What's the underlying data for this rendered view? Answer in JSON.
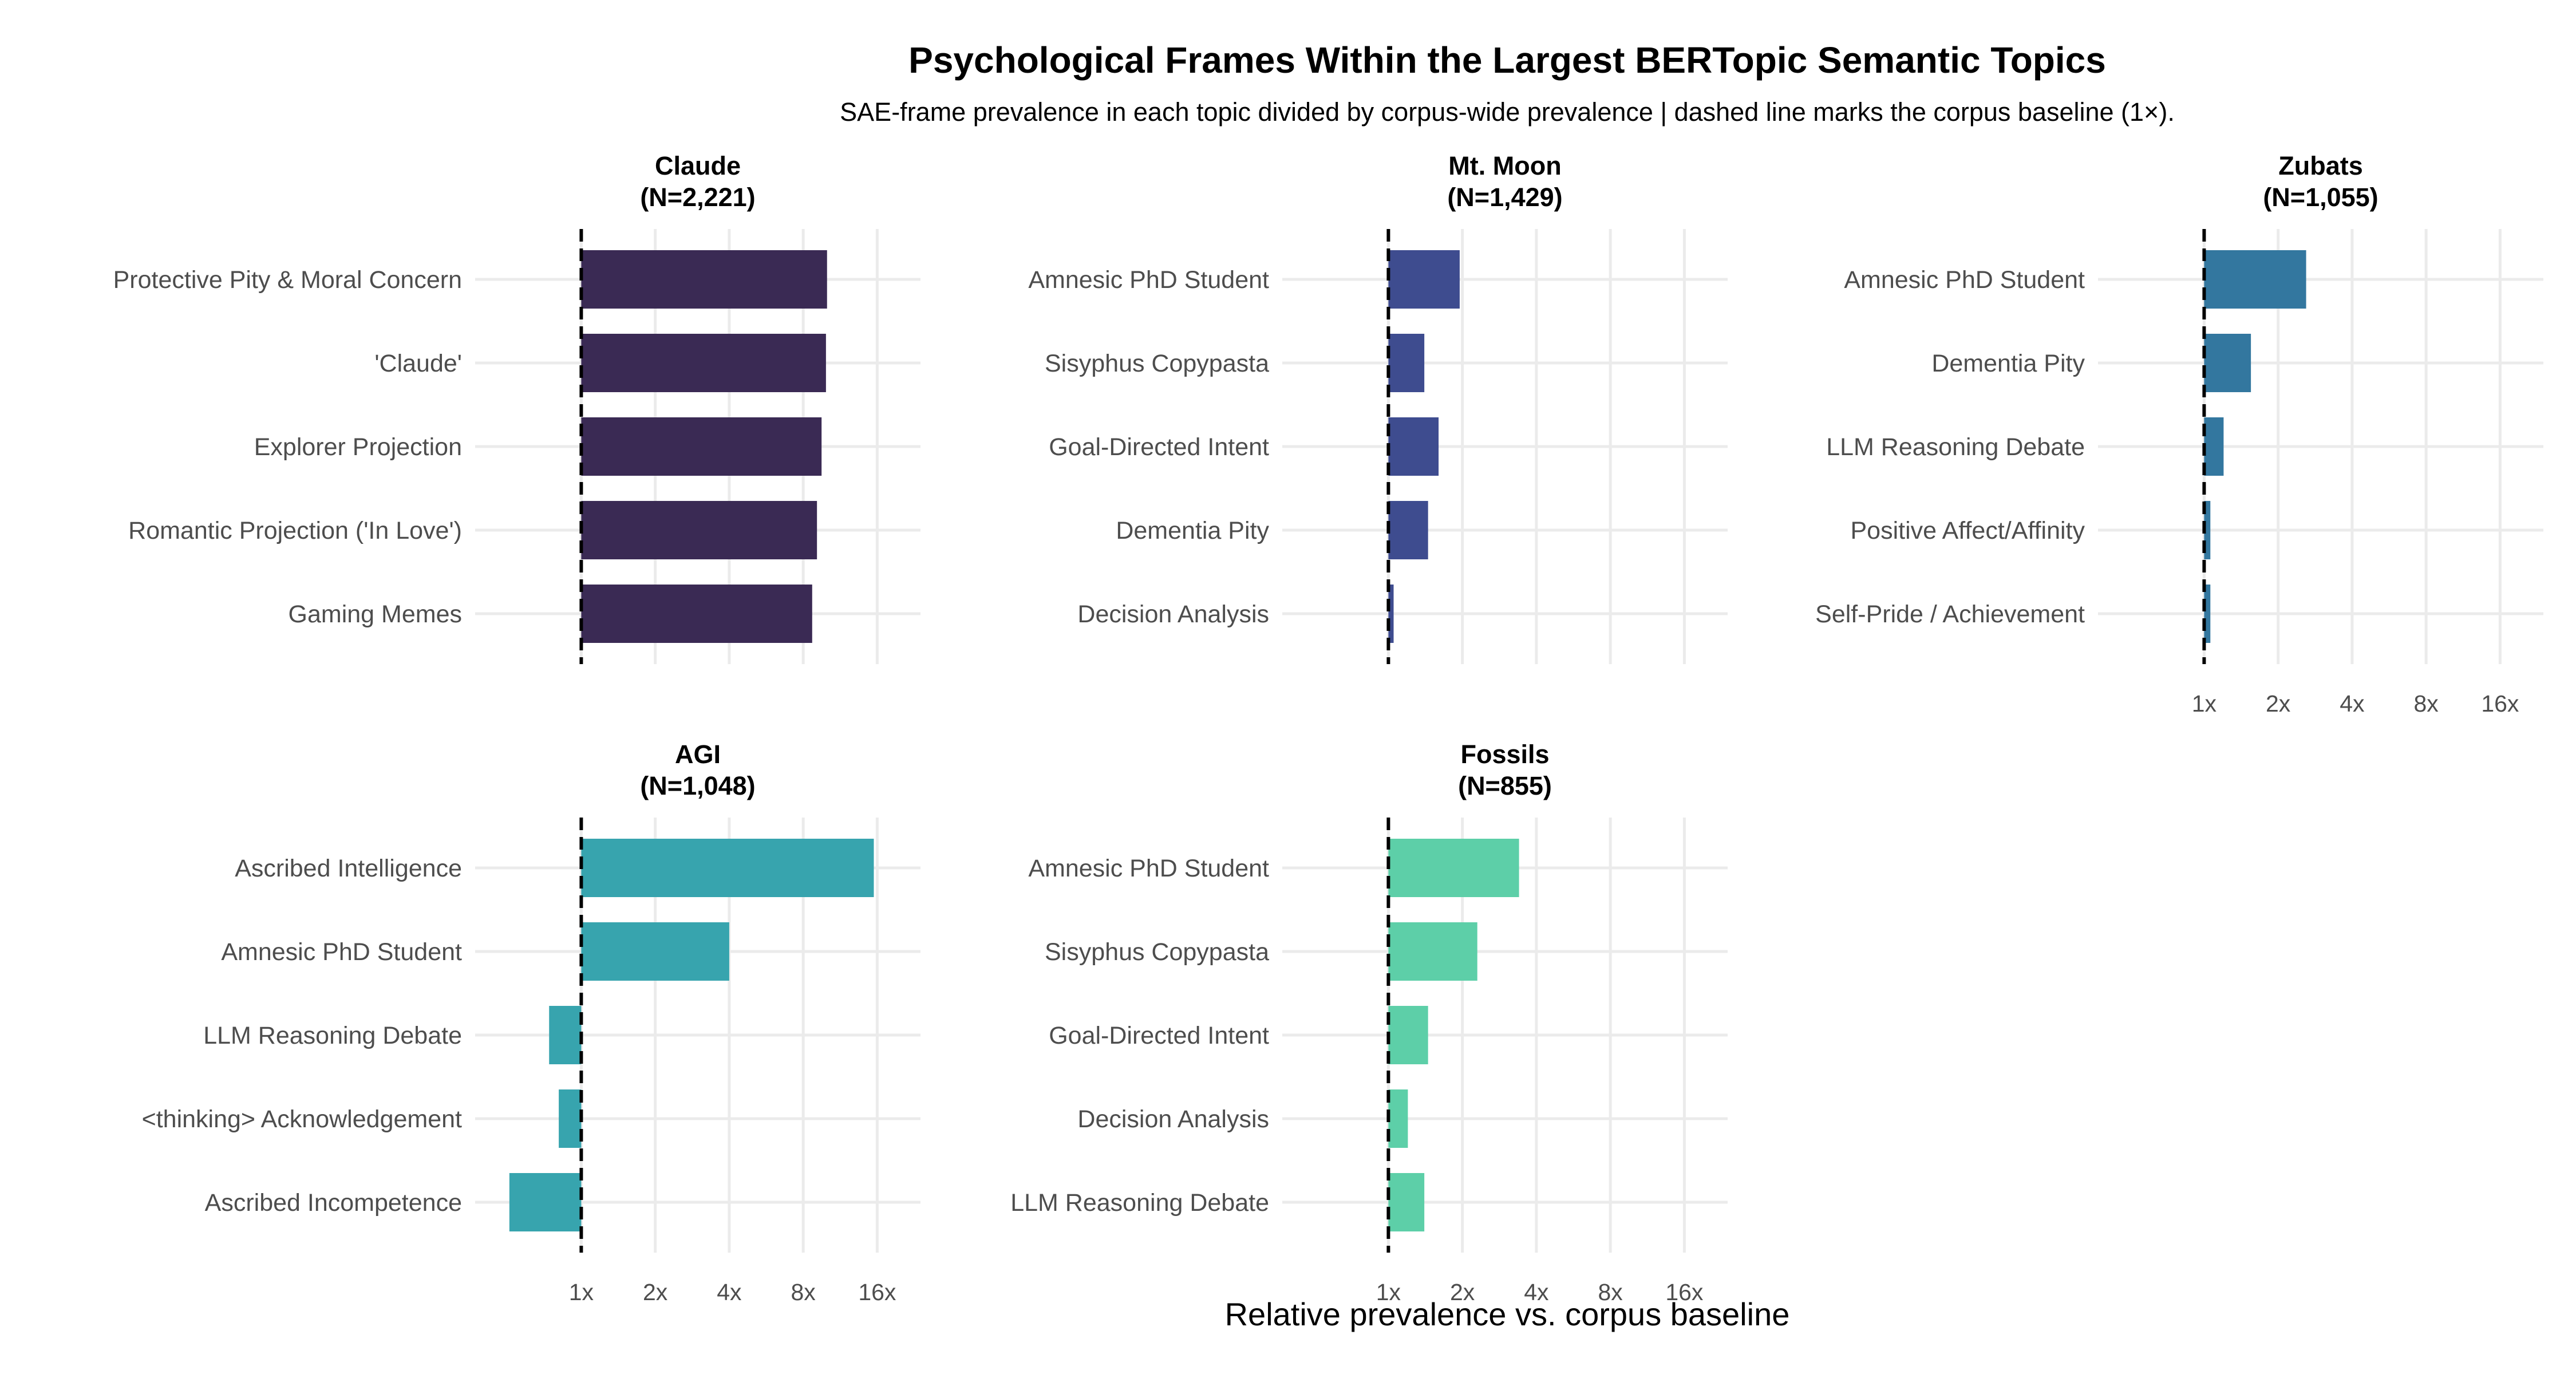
{
  "title": "Psychological Frames Within the Largest BERTopic Semantic Topics",
  "subtitle": "SAE-frame prevalence in each topic divided by corpus-wide prevalence | dashed line marks the corpus baseline (1×).",
  "chart_data": {
    "type": "bar",
    "orientation": "horizontal",
    "x_scale": "log2",
    "xlabel": "Relative prevalence vs. corpus baseline",
    "xlim": [
      0.37,
      24
    ],
    "x_ticks": [
      1,
      2,
      4,
      8,
      16
    ],
    "x_tick_labels": [
      "1x",
      "2x",
      "4x",
      "8x",
      "16x"
    ],
    "baseline": 1,
    "grid": true,
    "panels": [
      {
        "topic": "Claude",
        "n_label": "(N=2,221)",
        "color": "#3a2a54",
        "categories": [
          "Protective Pity & Moral Concern",
          "'Claude'",
          "Explorer Projection",
          "Romantic Projection ('In Love')",
          "Gaming Memes"
        ],
        "values": [
          10.0,
          9.9,
          9.5,
          9.1,
          8.7
        ]
      },
      {
        "topic": "Mt. Moon",
        "n_label": "(N=1,429)",
        "color": "#3e4c8f",
        "categories": [
          "Amnesic PhD Student",
          "Sisyphus Copypasta",
          "Goal-Directed Intent",
          "Dementia Pity",
          "Decision Analysis"
        ],
        "values": [
          1.95,
          1.4,
          1.6,
          1.45,
          1.05
        ]
      },
      {
        "topic": "Zubats",
        "n_label": "(N=1,055)",
        "color": "#33779f",
        "categories": [
          "Amnesic PhD Student",
          "Dementia Pity",
          "LLM Reasoning Debate",
          "Positive Affect/Affinity",
          "Self-Pride / Achievement"
        ],
        "values": [
          2.6,
          1.55,
          1.2,
          1.06,
          1.06
        ]
      },
      {
        "topic": "AGI",
        "n_label": "(N=1,048)",
        "color": "#37a4ae",
        "categories": [
          "Ascribed Intelligence",
          "Amnesic PhD Student",
          "LLM Reasoning Debate",
          "<thinking> Acknowledgement",
          "Ascribed Incompetence"
        ],
        "values": [
          15.5,
          4.0,
          0.74,
          0.81,
          0.51
        ]
      },
      {
        "topic": "Fossils",
        "n_label": "(N=855)",
        "color": "#5dcfa8",
        "categories": [
          "Amnesic PhD Student",
          "Sisyphus Copypasta",
          "Goal-Directed Intent",
          "Decision Analysis",
          "LLM Reasoning Debate"
        ],
        "values": [
          3.4,
          2.3,
          1.45,
          1.2,
          1.4
        ]
      }
    ]
  }
}
